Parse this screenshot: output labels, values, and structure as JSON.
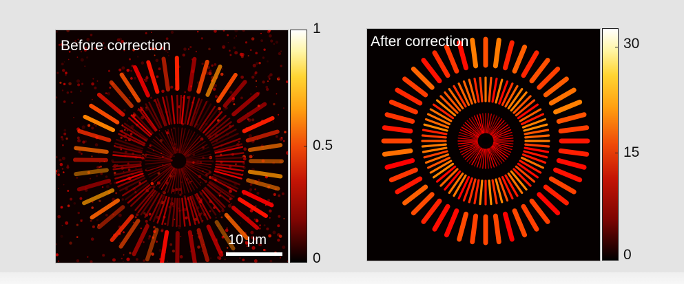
{
  "figure": {
    "left_panel": {
      "title": "Before correction",
      "scale_bar_label": "10 μm",
      "colorbar": {
        "ticks": [
          "1",
          "0.5",
          "0"
        ],
        "range": [
          0,
          1
        ],
        "colormap": "hot"
      }
    },
    "right_panel": {
      "title": "After correction",
      "colorbar": {
        "ticks": [
          "30",
          "15",
          "0"
        ],
        "range": [
          0,
          33
        ],
        "colormap": "hot"
      }
    }
  }
}
